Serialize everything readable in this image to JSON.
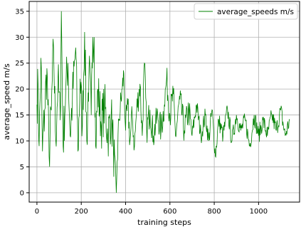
{
  "chart_data": {
    "type": "line",
    "title": "",
    "xlabel": "training steps",
    "ylabel": "average_speed m/s",
    "xlim": [
      -35,
      1185
    ],
    "ylim": [
      -1.8,
      36.9
    ],
    "x_ticks": [
      0,
      200,
      400,
      600,
      800,
      1000
    ],
    "y_ticks": [
      0,
      5,
      10,
      15,
      20,
      25,
      30,
      35
    ],
    "grid": true,
    "legend": {
      "position": "top-right",
      "entries": [
        "average_speeds m/s"
      ]
    },
    "series": [
      {
        "name": "average_speeds m/s",
        "color": "#008000",
        "keypoints": [
          [
            0,
            17
          ],
          [
            5,
            21
          ],
          [
            10,
            9
          ],
          [
            18,
            26
          ],
          [
            25,
            8
          ],
          [
            35,
            16
          ],
          [
            45,
            24
          ],
          [
            55,
            7
          ],
          [
            65,
            16
          ],
          [
            75,
            28
          ],
          [
            85,
            10
          ],
          [
            95,
            22
          ],
          [
            105,
            14
          ],
          [
            110,
            35
          ],
          [
            118,
            9
          ],
          [
            130,
            20
          ],
          [
            140,
            25
          ],
          [
            150,
            11
          ],
          [
            160,
            18
          ],
          [
            175,
            28
          ],
          [
            185,
            8
          ],
          [
            195,
            22
          ],
          [
            205,
            13
          ],
          [
            215,
            31
          ],
          [
            225,
            10
          ],
          [
            235,
            24
          ],
          [
            245,
            15
          ],
          [
            252,
            30
          ],
          [
            258,
            30
          ],
          [
            265,
            9
          ],
          [
            275,
            20
          ],
          [
            290,
            13
          ],
          [
            305,
            17
          ],
          [
            320,
            11
          ],
          [
            335,
            15
          ],
          [
            345,
            9
          ],
          [
            358,
            0
          ],
          [
            362,
            6
          ],
          [
            370,
            14
          ],
          [
            385,
            20
          ],
          [
            392,
            23
          ],
          [
            400,
            12
          ],
          [
            410,
            17
          ],
          [
            420,
            10
          ],
          [
            430,
            15
          ],
          [
            440,
            9
          ],
          [
            450,
            16
          ],
          [
            465,
            21
          ],
          [
            475,
            11
          ],
          [
            485,
            25
          ],
          [
            495,
            12
          ],
          [
            510,
            16
          ],
          [
            525,
            11
          ],
          [
            545,
            15
          ],
          [
            560,
            12
          ],
          [
            575,
            17
          ],
          [
            585,
            22
          ],
          [
            600,
            15
          ],
          [
            615,
            19
          ],
          [
            625,
            11
          ],
          [
            645,
            18
          ],
          [
            665,
            12
          ],
          [
            685,
            16
          ],
          [
            700,
            11
          ],
          [
            720,
            17
          ],
          [
            740,
            11
          ],
          [
            760,
            15
          ],
          [
            775,
            10
          ],
          [
            790,
            16
          ],
          [
            805,
            7
          ],
          [
            820,
            14
          ],
          [
            840,
            11
          ],
          [
            860,
            16
          ],
          [
            880,
            10
          ],
          [
            900,
            15
          ],
          [
            920,
            12
          ],
          [
            940,
            14
          ],
          [
            960,
            9
          ],
          [
            980,
            15
          ],
          [
            1000,
            11
          ],
          [
            1020,
            14
          ],
          [
            1040,
            11
          ],
          [
            1060,
            15
          ],
          [
            1080,
            12
          ],
          [
            1100,
            16
          ],
          [
            1120,
            11
          ],
          [
            1140,
            14
          ]
        ],
        "note_noise": "line is noisy between keypoints"
      }
    ]
  }
}
